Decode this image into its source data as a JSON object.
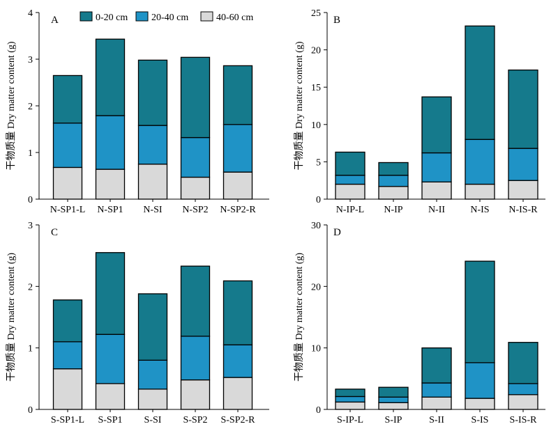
{
  "colors": {
    "0-20 cm": "#157a8c",
    "20-40 cm": "#1f93c6",
    "40-60 cm": "#d9d9d9",
    "stroke": "#000000"
  },
  "legend": {
    "placement": "top",
    "entries": [
      "0-20 cm",
      "20-40 cm",
      "40-60 cm"
    ]
  },
  "chart_data": [
    {
      "panel": "A",
      "type": "bar",
      "stacked": true,
      "ylabel": "干物质量 Dry matter content (g)",
      "ylim": [
        0,
        4
      ],
      "yticks": [
        0,
        1,
        2,
        3,
        4
      ],
      "grid": false,
      "categories": [
        "N-SP1-L",
        "N-SP1",
        "N-SI",
        "N-SP2",
        "N-SP2-R"
      ],
      "series": [
        {
          "name": "40-60 cm",
          "values": [
            0.68,
            0.64,
            0.75,
            0.47,
            0.58
          ]
        },
        {
          "name": "20-40 cm",
          "values": [
            0.95,
            1.15,
            0.83,
            0.85,
            1.02
          ]
        },
        {
          "name": "0-20 cm",
          "values": [
            1.02,
            1.64,
            1.4,
            1.72,
            1.26
          ]
        }
      ]
    },
    {
      "panel": "B",
      "type": "bar",
      "stacked": true,
      "ylabel": "干物质量 Dry matter content (g)",
      "ylim": [
        0,
        25
      ],
      "yticks": [
        0,
        5,
        10,
        15,
        20,
        25
      ],
      "grid": false,
      "categories": [
        "N-IP-L",
        "N-IP",
        "N-II",
        "N-IS",
        "N-IS-R"
      ],
      "series": [
        {
          "name": "40-60 cm",
          "values": [
            2.0,
            1.7,
            2.3,
            2.0,
            2.5
          ]
        },
        {
          "name": "20-40 cm",
          "values": [
            1.2,
            1.5,
            3.9,
            6.0,
            4.3
          ]
        },
        {
          "name": "0-20 cm",
          "values": [
            3.1,
            1.7,
            7.5,
            15.2,
            10.5
          ]
        }
      ]
    },
    {
      "panel": "C",
      "type": "bar",
      "stacked": true,
      "ylabel": "干物质量 Dry matter content (g)",
      "ylim": [
        0,
        3
      ],
      "yticks": [
        0,
        1,
        2,
        3
      ],
      "grid": false,
      "categories": [
        "S-SP1-L",
        "S-SP1",
        "S-SI",
        "S-SP2",
        "S-SP2-R"
      ],
      "series": [
        {
          "name": "40-60 cm",
          "values": [
            0.66,
            0.42,
            0.33,
            0.48,
            0.52
          ]
        },
        {
          "name": "20-40 cm",
          "values": [
            0.44,
            0.8,
            0.47,
            0.71,
            0.53
          ]
        },
        {
          "name": "0-20 cm",
          "values": [
            0.68,
            1.33,
            1.08,
            1.14,
            1.04
          ]
        }
      ]
    },
    {
      "panel": "D",
      "type": "bar",
      "stacked": true,
      "ylabel": "干物质量 Dry matter content (g)",
      "ylim": [
        0,
        30
      ],
      "yticks": [
        0,
        10,
        20,
        30
      ],
      "grid": false,
      "categories": [
        "S-IP-L",
        "S-IP",
        "S-II",
        "S-IS",
        "S-IS-R"
      ],
      "series": [
        {
          "name": "40-60 cm",
          "values": [
            1.2,
            1.1,
            2.0,
            1.8,
            2.4
          ]
        },
        {
          "name": "20-40 cm",
          "values": [
            0.9,
            0.9,
            2.3,
            5.8,
            1.8
          ]
        },
        {
          "name": "0-20 cm",
          "values": [
            1.2,
            1.6,
            5.7,
            16.5,
            6.7
          ]
        }
      ]
    }
  ]
}
